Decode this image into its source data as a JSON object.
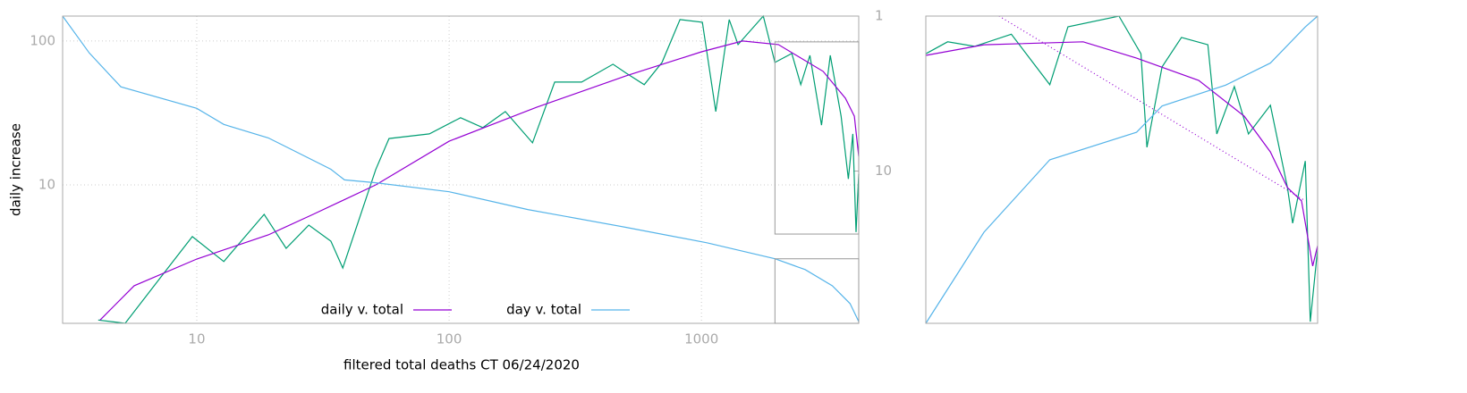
{
  "chart_data": [
    {
      "type": "line",
      "xlabel": "filtered total deaths CT 06/24/2020",
      "ylabel": "daily increase",
      "xlog": true,
      "ylog": true,
      "y2log": true,
      "xlim": [
        2.94,
        4200
      ],
      "ylim": [
        1.09,
        149
      ],
      "y2lim": [
        96,
        1
      ],
      "xticks": [
        10,
        100,
        1000
      ],
      "yticks": [
        10,
        100
      ],
      "y2ticks": [
        1,
        10
      ],
      "grid": true,
      "legend": "bottom center",
      "series": [
        {
          "color": "#009e73",
          "x": [
            4.07,
            5.2,
            7.21,
            9.6,
            12.8,
            18.5,
            22.6,
            27.8,
            34,
            37.9,
            51.2,
            57.8,
            83.5,
            111,
            136,
            167,
            214,
            262,
            335,
            446,
            504,
            593,
            698,
            822,
            1008,
            1140,
            1288,
            1396,
            1758,
            1955,
            2280,
            2475,
            2690,
            2990,
            3240,
            3575,
            3820,
            3980,
            4100,
            4200
          ],
          "values": [
            1.15,
            1.09,
            2.29,
            4.37,
            2.93,
            6.24,
            3.62,
            5.25,
            4.06,
            2.64,
            12.8,
            21,
            22.6,
            29.3,
            25,
            32.3,
            19.6,
            51.8,
            51.8,
            69,
            59.7,
            49.7,
            71,
            141,
            135,
            32.3,
            141,
            94.4,
            149,
            71,
            81.8,
            49.7,
            79.4,
            26,
            79.4,
            30,
            11,
            22.6,
            4.69,
            11.9
          ]
        },
        {
          "name": "daily v. total",
          "color": "#9400d3",
          "x": [
            4.14,
            5.65,
            10,
            19.2,
            28.9,
            51.2,
            100,
            223,
            504,
            1000,
            1455,
            2018,
            3034,
            3720,
            4035,
            4200
          ],
          "values": [
            1.15,
            1.99,
            3.05,
            4.49,
            6.24,
            10,
            20.1,
            34.7,
            57.3,
            84.1,
            100,
            94.4,
            61.5,
            40,
            30,
            15.8
          ]
        },
        {
          "name": "day v. total",
          "color": "#56b4e9",
          "axis": "y2",
          "x": [
            2.94,
            3.75,
            5.0,
            10,
            12.8,
            19.2,
            22.6,
            34,
            38.5,
            51.2,
            100,
            205,
            504,
            1050,
            1955,
            2575,
            3300,
            3880,
            4200
          ],
          "values": [
            1,
            1.73,
            2.86,
            3.94,
            5.0,
            6.11,
            6.98,
            9.73,
            11.4,
            11.9,
            13.6,
            17.7,
            23.1,
            29,
            36.8,
            43.2,
            55,
            71.6,
            93.5
          ]
        }
      ]
    },
    {
      "type": "line",
      "xlog": true,
      "ylog": true,
      "y2log": true,
      "xlim": [
        1955,
        4200
      ],
      "ylim": [
        4.55,
        98.6
      ],
      "y2lim": [
        36.8,
        96
      ],
      "series": [
        {
          "color": "#9400d3",
          "dash": "dotted",
          "x": [
            2255,
            4100
          ],
          "values": [
            98.6,
            15.5
          ]
        },
        {
          "color": "#009e73",
          "x": [
            1955,
            2040,
            2150,
            2310,
            2490,
            2580,
            2850,
            2975,
            3010,
            3100,
            3220,
            3390,
            3450,
            3570,
            3670,
            3830,
            3960,
            4000,
            4100,
            4140,
            4200
          ],
          "values": [
            67.6,
            76.2,
            72.8,
            82.2,
            49.6,
            88.6,
            98.6,
            67.6,
            26.5,
            59.3,
            79.6,
            74,
            30.3,
            48.7,
            30.3,
            40.4,
            17.7,
            12.4,
            23.1,
            4.63,
            9.6
          ]
        },
        {
          "color": "#9400d3",
          "x": [
            1955,
            2190,
            2658,
            2950,
            3330,
            3640,
            3830,
            3960,
            4070,
            4160,
            4200
          ],
          "values": [
            66.5,
            74,
            76.2,
            64.7,
            51.8,
            36.2,
            25.3,
            17.7,
            15.5,
            8.07,
            9.9
          ]
        },
        {
          "color": "#56b4e9",
          "axis": "y2",
          "x": [
            1955,
            2190,
            2490,
            2950,
            3100,
            3510,
            3830,
            4100,
            4200
          ],
          "values": [
            36.8,
            48.9,
            61.3,
            66.8,
            72.5,
            77.4,
            82.9,
            92.8,
            96
          ]
        }
      ]
    }
  ]
}
